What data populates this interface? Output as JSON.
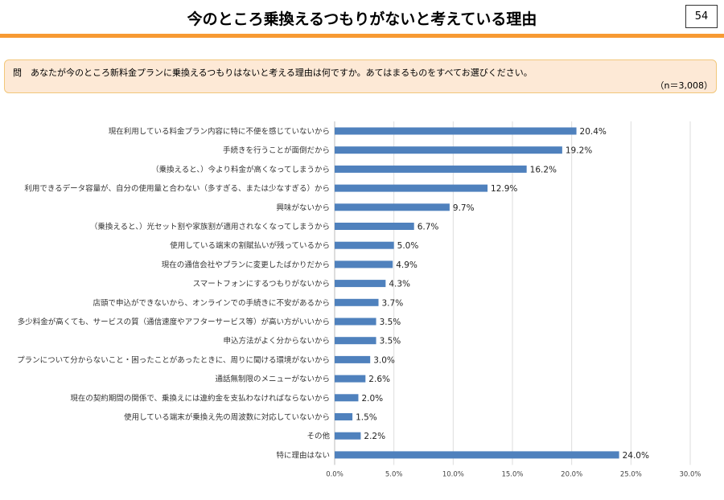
{
  "header": {
    "title": "今のところ乗換えるつもりがないと考えている理由",
    "page_number": "54",
    "accent_color": "#f79a33"
  },
  "question": {
    "text": "問　あなたが今のところ新料金プランに乗換えるつもりはないと考える理由は何ですか。あてはまるものをすべてお選びください。",
    "n": "（n＝3,008）"
  },
  "chart_data": {
    "type": "bar",
    "orientation": "horizontal",
    "bar_color": "#4f81bd",
    "grid": true,
    "xlim": [
      0,
      30
    ],
    "x_ticks": [
      "0.0%",
      "5.0%",
      "10.0%",
      "15.0%",
      "20.0%",
      "25.0%",
      "30.0%"
    ],
    "categories": [
      "現在利用している料金プラン内容に特に不便を感じていないから",
      "手続きを行うことが面倒だから",
      "（乗換えると、）今より料金が高くなってしまうから",
      "利用できるデータ容量が、自分の使用量と合わない（多すぎる、または少なすぎる）から",
      "興味がないから",
      "（乗換えると、）光セット割や家族割が適用されなくなってしまうから",
      "使用している端末の割賦払いが残っているから",
      "現在の通信会社やプランに変更したばかりだから",
      "スマートフォンにするつもりがないから",
      "店頭で申込ができないから、オンラインでの手続きに不安があるから",
      "多少料金が高くても、サービスの質（通信速度やアフターサービス等）が高い方がいいから",
      "申込方法がよく分からないから",
      "プランについて分からないこと・困ったことがあったときに、周りに聞ける環境がないから",
      "通話無制限のメニューがないから",
      "現在の契約期間の関係で、乗換えには違約金を支払わなければならないから",
      "使用している端末が乗換え先の周波数に対応していないから",
      "その他",
      "特に理由はない"
    ],
    "values": [
      20.4,
      19.2,
      16.2,
      12.9,
      9.7,
      6.7,
      5.0,
      4.9,
      4.3,
      3.7,
      3.5,
      3.5,
      3.0,
      2.6,
      2.0,
      1.5,
      2.2,
      24.0
    ],
    "labels": [
      "20.4%",
      "19.2%",
      "16.2%",
      "12.9%",
      "9.7%",
      "6.7%",
      "5.0%",
      "4.9%",
      "4.3%",
      "3.7%",
      "3.5%",
      "3.5%",
      "3.0%",
      "2.6%",
      "2.0%",
      "1.5%",
      "2.2%",
      "24.0%"
    ]
  }
}
